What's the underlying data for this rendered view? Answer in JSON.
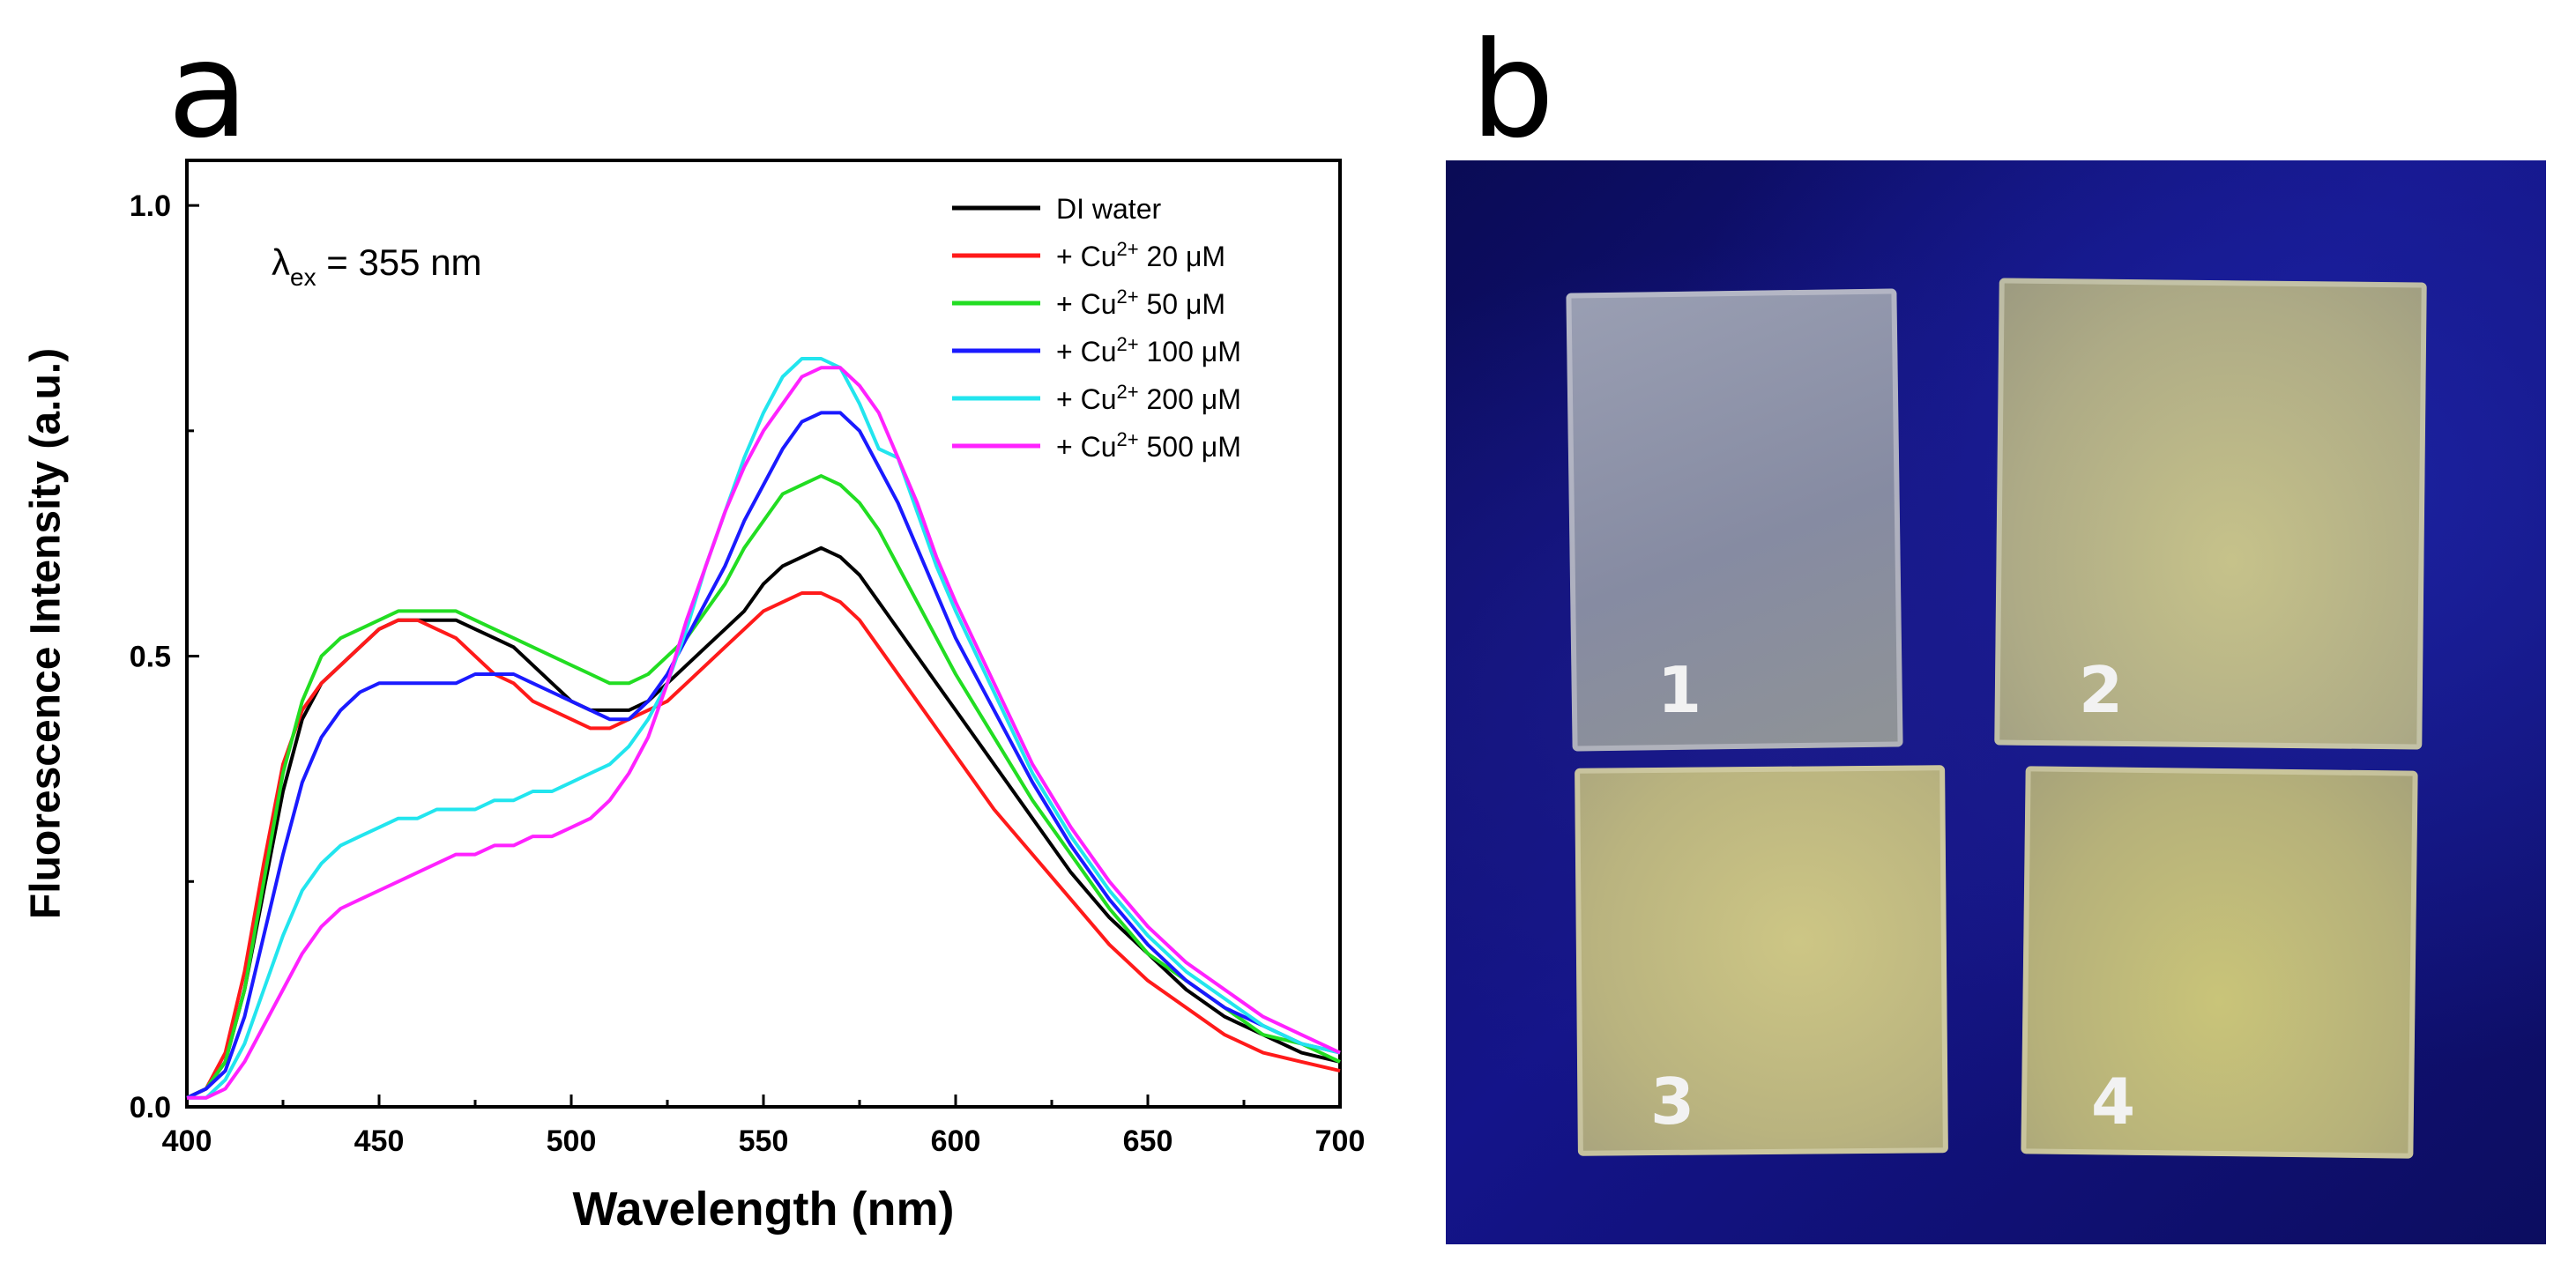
{
  "panel_a": {
    "letter": "a"
  },
  "panel_b": {
    "letter": "b",
    "film_labels": [
      "1",
      "2",
      "3",
      "4"
    ],
    "colors": {
      "background": "#0f1075",
      "film_1": "#8f94a8",
      "film_2": "#b9b68a",
      "film_3": "#c2bd82",
      "film_4": "#bcb878"
    }
  },
  "chart_data": {
    "type": "line",
    "title": "",
    "xlabel": "Wavelength (nm)",
    "ylabel": "Fluorescence Intensity (a.u.)",
    "xlim": [
      400,
      700
    ],
    "ylim": [
      0,
      1.05
    ],
    "xticks": [
      400,
      450,
      500,
      550,
      600,
      650,
      700
    ],
    "xtick_labels": [
      "400",
      "450",
      "500",
      "550",
      "600",
      "650",
      "700"
    ],
    "yticks": [
      0,
      0.5,
      1.0
    ],
    "ytick_labels": [
      "0.0",
      "0.5",
      "1.0"
    ],
    "annotation": {
      "main": "λ",
      "sub": "ex",
      "rest": " = 355 nm"
    },
    "legend_position": "top-right",
    "x": [
      400,
      405,
      410,
      415,
      420,
      425,
      430,
      435,
      440,
      445,
      450,
      455,
      460,
      465,
      470,
      475,
      480,
      485,
      490,
      495,
      500,
      505,
      510,
      515,
      520,
      525,
      530,
      535,
      540,
      545,
      550,
      555,
      560,
      565,
      570,
      575,
      580,
      585,
      590,
      595,
      600,
      610,
      620,
      630,
      640,
      650,
      660,
      670,
      680,
      690,
      700
    ],
    "series": [
      {
        "name": "DI water",
        "label_prefix": "DI water",
        "color": "#000000",
        "values": [
          0.01,
          0.02,
          0.05,
          0.13,
          0.24,
          0.35,
          0.43,
          0.47,
          0.49,
          0.51,
          0.53,
          0.54,
          0.54,
          0.54,
          0.54,
          0.53,
          0.52,
          0.51,
          0.49,
          0.47,
          0.45,
          0.44,
          0.44,
          0.44,
          0.45,
          0.47,
          0.49,
          0.51,
          0.53,
          0.55,
          0.58,
          0.6,
          0.61,
          0.62,
          0.61,
          0.59,
          0.56,
          0.53,
          0.5,
          0.47,
          0.44,
          0.38,
          0.32,
          0.26,
          0.21,
          0.17,
          0.13,
          0.1,
          0.08,
          0.06,
          0.05
        ]
      },
      {
        "name": "+ Cu2+ 20 µM",
        "label_prefix": "+ Cu",
        "label_sup": "2+",
        "label_suffix": " 20 μM",
        "color": "#ff1a1a",
        "values": [
          0.01,
          0.02,
          0.06,
          0.15,
          0.27,
          0.38,
          0.44,
          0.47,
          0.49,
          0.51,
          0.53,
          0.54,
          0.54,
          0.53,
          0.52,
          0.5,
          0.48,
          0.47,
          0.45,
          0.44,
          0.43,
          0.42,
          0.42,
          0.43,
          0.44,
          0.45,
          0.47,
          0.49,
          0.51,
          0.53,
          0.55,
          0.56,
          0.57,
          0.57,
          0.56,
          0.54,
          0.51,
          0.48,
          0.45,
          0.42,
          0.39,
          0.33,
          0.28,
          0.23,
          0.18,
          0.14,
          0.11,
          0.08,
          0.06,
          0.05,
          0.04
        ]
      },
      {
        "name": "+ Cu2+ 50 µM",
        "label_prefix": "+ Cu",
        "label_sup": "2+",
        "label_suffix": " 50 μM",
        "color": "#22dd22",
        "values": [
          0.01,
          0.02,
          0.05,
          0.13,
          0.25,
          0.37,
          0.45,
          0.5,
          0.52,
          0.53,
          0.54,
          0.55,
          0.55,
          0.55,
          0.55,
          0.54,
          0.53,
          0.52,
          0.51,
          0.5,
          0.49,
          0.48,
          0.47,
          0.47,
          0.48,
          0.5,
          0.52,
          0.55,
          0.58,
          0.62,
          0.65,
          0.68,
          0.69,
          0.7,
          0.69,
          0.67,
          0.64,
          0.6,
          0.56,
          0.52,
          0.48,
          0.41,
          0.34,
          0.28,
          0.22,
          0.17,
          0.14,
          0.11,
          0.08,
          0.07,
          0.05
        ]
      },
      {
        "name": "+ Cu2+ 100 µM",
        "label_prefix": "+ Cu",
        "label_sup": "2+",
        "label_suffix": " 100 μM",
        "color": "#1a1aff",
        "values": [
          0.01,
          0.02,
          0.04,
          0.1,
          0.19,
          0.28,
          0.36,
          0.41,
          0.44,
          0.46,
          0.47,
          0.47,
          0.47,
          0.47,
          0.47,
          0.48,
          0.48,
          0.48,
          0.47,
          0.46,
          0.45,
          0.44,
          0.43,
          0.43,
          0.45,
          0.48,
          0.52,
          0.56,
          0.6,
          0.65,
          0.69,
          0.73,
          0.76,
          0.77,
          0.77,
          0.75,
          0.71,
          0.67,
          0.62,
          0.57,
          0.52,
          0.44,
          0.36,
          0.29,
          0.23,
          0.18,
          0.14,
          0.11,
          0.09,
          0.07,
          0.06
        ]
      },
      {
        "name": "+ Cu2+ 200 µM",
        "label_prefix": "+ Cu",
        "label_sup": "2+",
        "label_suffix": " 200 μM",
        "color": "#22e5ee",
        "values": [
          0.01,
          0.01,
          0.03,
          0.07,
          0.13,
          0.19,
          0.24,
          0.27,
          0.29,
          0.3,
          0.31,
          0.32,
          0.32,
          0.33,
          0.33,
          0.33,
          0.34,
          0.34,
          0.35,
          0.35,
          0.36,
          0.37,
          0.38,
          0.4,
          0.43,
          0.47,
          0.53,
          0.6,
          0.66,
          0.72,
          0.77,
          0.81,
          0.83,
          0.83,
          0.82,
          0.78,
          0.73,
          0.72,
          0.66,
          0.6,
          0.55,
          0.46,
          0.37,
          0.3,
          0.24,
          0.19,
          0.15,
          0.12,
          0.09,
          0.07,
          0.06
        ]
      },
      {
        "name": "+ Cu2+ 500 µM",
        "label_prefix": "+ Cu",
        "label_sup": "2+",
        "label_suffix": " 500 μM",
        "color": "#ff22ff",
        "values": [
          0.01,
          0.01,
          0.02,
          0.05,
          0.09,
          0.13,
          0.17,
          0.2,
          0.22,
          0.23,
          0.24,
          0.25,
          0.26,
          0.27,
          0.28,
          0.28,
          0.29,
          0.29,
          0.3,
          0.3,
          0.31,
          0.32,
          0.34,
          0.37,
          0.41,
          0.47,
          0.54,
          0.6,
          0.66,
          0.71,
          0.75,
          0.78,
          0.81,
          0.82,
          0.82,
          0.8,
          0.77,
          0.72,
          0.67,
          0.61,
          0.56,
          0.47,
          0.38,
          0.31,
          0.25,
          0.2,
          0.16,
          0.13,
          0.1,
          0.08,
          0.06
        ]
      }
    ]
  }
}
